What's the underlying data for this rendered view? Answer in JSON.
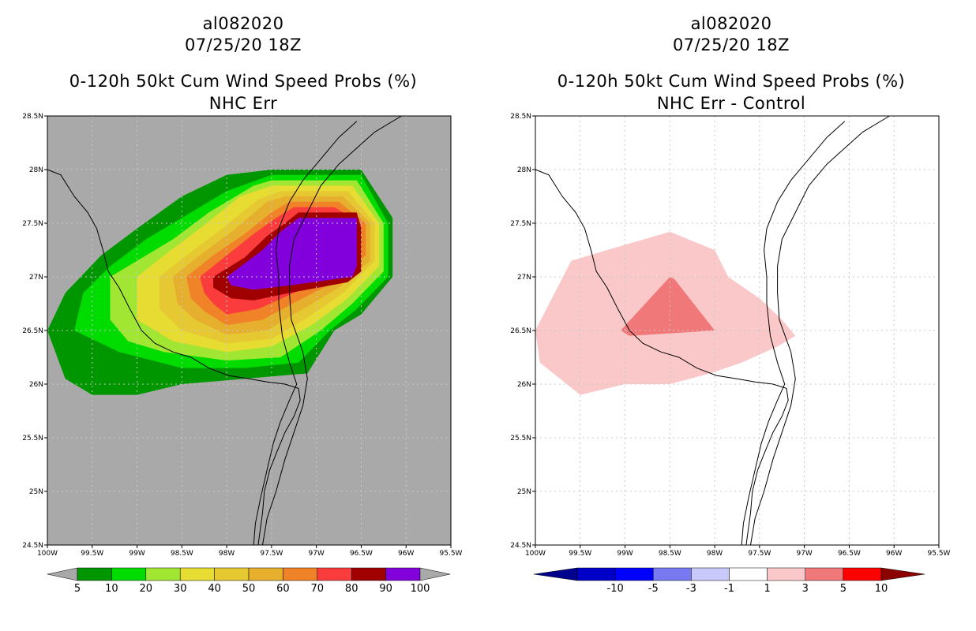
{
  "chart_data": [
    {
      "type": "filled-contour-map",
      "title": [
        "al082020",
        "07/25/20 18Z",
        "0-120h 50kt Cum Wind Speed Probs (%)",
        "NHC Err"
      ],
      "x_ticks": [
        "100W",
        "99.5W",
        "99W",
        "98.5W",
        "98W",
        "97.5W",
        "97W",
        "96.5W",
        "96W",
        "95.5W"
      ],
      "y_ticks": [
        "24.5N",
        "25N",
        "25.5N",
        "26N",
        "26.5N",
        "27N",
        "27.5N",
        "28N",
        "28.5N"
      ],
      "lon_range": [
        -100,
        -95.5
      ],
      "lat_range": [
        24.5,
        28.5
      ],
      "background_color": "#a9a9a9",
      "colorbar": {
        "labels": [
          "5",
          "10",
          "20",
          "30",
          "40",
          "50",
          "60",
          "70",
          "80",
          "90",
          "100"
        ],
        "colors": [
          "#009600",
          "#00dc00",
          "#a0e632",
          "#e6dc32",
          "#e6c832",
          "#e6af2d",
          "#f08228",
          "#fa3c3c",
          "#a00000",
          "#8200dc"
        ]
      },
      "levels": [
        {
          "color": "#009600",
          "outline": [
            [
              -100,
              26.5
            ],
            [
              -99.8,
              26.85
            ],
            [
              -99.4,
              27.2
            ],
            [
              -99,
              27.45
            ],
            [
              -98.5,
              27.75
            ],
            [
              -98,
              27.95
            ],
            [
              -97.5,
              28
            ],
            [
              -96.5,
              28
            ],
            [
              -96.15,
              27.55
            ],
            [
              -96.15,
              27
            ],
            [
              -96.5,
              26.65
            ],
            [
              -96.8,
              26.5
            ],
            [
              -97.1,
              26.1
            ],
            [
              -97.8,
              26.05
            ],
            [
              -98.5,
              26
            ],
            [
              -99,
              25.9
            ],
            [
              -99.5,
              25.9
            ],
            [
              -99.8,
              26.05
            ]
          ]
        },
        {
          "color": "#00dc00",
          "outline": [
            [
              -99.7,
              26.5
            ],
            [
              -99.6,
              26.85
            ],
            [
              -99.3,
              27.1
            ],
            [
              -98.9,
              27.35
            ],
            [
              -98.5,
              27.55
            ],
            [
              -98,
              27.8
            ],
            [
              -97.5,
              27.95
            ],
            [
              -96.5,
              27.95
            ],
            [
              -96.2,
              27.5
            ],
            [
              -96.2,
              27
            ],
            [
              -96.55,
              26.7
            ],
            [
              -96.85,
              26.5
            ],
            [
              -97.2,
              26.2
            ],
            [
              -97.8,
              26.15
            ],
            [
              -98.5,
              26.15
            ],
            [
              -99.2,
              26.3
            ]
          ]
        },
        {
          "color": "#a0e632",
          "outline": [
            [
              -99.3,
              26.6
            ],
            [
              -99.3,
              27
            ],
            [
              -99,
              27.15
            ],
            [
              -98.6,
              27.35
            ],
            [
              -98.2,
              27.6
            ],
            [
              -97.7,
              27.85
            ],
            [
              -97.5,
              27.9
            ],
            [
              -96.55,
              27.9
            ],
            [
              -96.25,
              27.5
            ],
            [
              -96.25,
              27.05
            ],
            [
              -96.6,
              26.75
            ],
            [
              -96.95,
              26.5
            ],
            [
              -97.4,
              26.25
            ],
            [
              -98,
              26.22
            ],
            [
              -98.7,
              26.3
            ],
            [
              -99.1,
              26.4
            ]
          ]
        },
        {
          "color": "#e6dc32",
          "outline": [
            [
              -99,
              26.6
            ],
            [
              -99,
              27
            ],
            [
              -98.7,
              27.2
            ],
            [
              -98.3,
              27.45
            ],
            [
              -97.85,
              27.75
            ],
            [
              -97.5,
              27.85
            ],
            [
              -96.6,
              27.85
            ],
            [
              -96.3,
              27.5
            ],
            [
              -96.3,
              27.1
            ],
            [
              -96.65,
              26.8
            ],
            [
              -97.05,
              26.55
            ],
            [
              -97.5,
              26.35
            ],
            [
              -98,
              26.3
            ],
            [
              -98.6,
              26.4
            ]
          ]
        },
        {
          "color": "#e6c832",
          "outline": [
            [
              -98.75,
              26.7
            ],
            [
              -98.75,
              27
            ],
            [
              -98.45,
              27.2
            ],
            [
              -98.05,
              27.45
            ],
            [
              -97.65,
              27.72
            ],
            [
              -97.4,
              27.8
            ],
            [
              -96.65,
              27.8
            ],
            [
              -96.35,
              27.5
            ],
            [
              -96.35,
              27.15
            ],
            [
              -96.7,
              26.85
            ],
            [
              -97.1,
              26.62
            ],
            [
              -97.5,
              26.42
            ],
            [
              -98,
              26.38
            ],
            [
              -98.5,
              26.5
            ]
          ]
        },
        {
          "color": "#e6af2d",
          "outline": [
            [
              -98.55,
              26.75
            ],
            [
              -98.6,
              27
            ],
            [
              -98.3,
              27.2
            ],
            [
              -97.9,
              27.45
            ],
            [
              -97.55,
              27.7
            ],
            [
              -97.35,
              27.75
            ],
            [
              -96.7,
              27.75
            ],
            [
              -96.4,
              27.5
            ],
            [
              -96.4,
              27.15
            ],
            [
              -96.75,
              26.9
            ],
            [
              -97.15,
              26.7
            ],
            [
              -97.55,
              26.5
            ],
            [
              -98,
              26.46
            ],
            [
              -98.35,
              26.6
            ]
          ]
        },
        {
          "color": "#f08228",
          "outline": [
            [
              -98.4,
              26.8
            ],
            [
              -98.45,
              27
            ],
            [
              -98.15,
              27.2
            ],
            [
              -97.8,
              27.4
            ],
            [
              -97.5,
              27.6
            ],
            [
              -97.3,
              27.7
            ],
            [
              -96.75,
              27.7
            ],
            [
              -96.45,
              27.5
            ],
            [
              -96.45,
              27.2
            ],
            [
              -96.8,
              26.95
            ],
            [
              -97.2,
              26.78
            ],
            [
              -97.6,
              26.6
            ],
            [
              -98,
              26.55
            ],
            [
              -98.25,
              26.68
            ]
          ]
        },
        {
          "color": "#fa3c3c",
          "outline": [
            [
              -98.25,
              26.85
            ],
            [
              -98.3,
              27
            ],
            [
              -98,
              27.2
            ],
            [
              -97.7,
              27.4
            ],
            [
              -97.45,
              27.55
            ],
            [
              -97.25,
              27.65
            ],
            [
              -96.8,
              27.65
            ],
            [
              -96.5,
              27.5
            ],
            [
              -96.5,
              27.2
            ],
            [
              -96.85,
              27
            ],
            [
              -97.25,
              26.85
            ],
            [
              -97.65,
              26.7
            ],
            [
              -98,
              26.65
            ],
            [
              -98.15,
              26.75
            ]
          ]
        },
        {
          "color": "#a00000",
          "outline": [
            [
              -98.15,
              27
            ],
            [
              -97.8,
              27.18
            ],
            [
              -97.55,
              27.38
            ],
            [
              -97.35,
              27.5
            ],
            [
              -97.2,
              27.6
            ],
            [
              -96.55,
              27.6
            ],
            [
              -96.5,
              27.45
            ],
            [
              -96.5,
              27.05
            ],
            [
              -96.65,
              26.95
            ],
            [
              -97.3,
              26.85
            ],
            [
              -97.7,
              26.78
            ],
            [
              -97.95,
              26.8
            ],
            [
              -98.15,
              26.9
            ]
          ]
        },
        {
          "color": "#8200dc",
          "outline": [
            [
              -98,
              27
            ],
            [
              -97.6,
              27.25
            ],
            [
              -97.4,
              27.42
            ],
            [
              -97.2,
              27.55
            ],
            [
              -96.55,
              27.55
            ],
            [
              -96.55,
              27.1
            ],
            [
              -96.6,
              27
            ],
            [
              -97.3,
              26.92
            ],
            [
              -97.7,
              26.88
            ],
            [
              -97.95,
              26.92
            ]
          ]
        }
      ]
    },
    {
      "type": "filled-contour-map",
      "title": [
        "al082020",
        "07/25/20 18Z",
        "0-120h 50kt Cum Wind Speed Probs (%)",
        "NHC Err - Control"
      ],
      "x_ticks": [
        "100W",
        "99.5W",
        "99W",
        "98.5W",
        "98W",
        "97.5W",
        "97W",
        "96.5W",
        "96W",
        "95.5W"
      ],
      "y_ticks": [
        "24.5N",
        "25N",
        "25.5N",
        "26N",
        "26.5N",
        "27N",
        "27.5N",
        "28N",
        "28.5N"
      ],
      "lon_range": [
        -100,
        -95.5
      ],
      "lat_range": [
        24.5,
        28.5
      ],
      "background_color": "#ffffff",
      "grid": true,
      "colorbar": {
        "labels": [
          "-10",
          "-5",
          "-3",
          "-1",
          "1",
          "3",
          "5",
          "10"
        ],
        "colors": [
          "#0000c8",
          "#0000ff",
          "#7878f0",
          "#c8c8fa",
          "#ffffff",
          "#fac8c8",
          "#f07878",
          "#ff0000"
        ],
        "end_colors": [
          "#00008c",
          "#8c0000"
        ]
      },
      "levels": [
        {
          "color": "#fac8c8",
          "outline": [
            [
              -100,
              26.5
            ],
            [
              -99.6,
              27.15
            ],
            [
              -99.2,
              27.25
            ],
            [
              -98.5,
              27.42
            ],
            [
              -98,
              27.25
            ],
            [
              -97.85,
              27
            ],
            [
              -97.5,
              26.8
            ],
            [
              -97.25,
              26.6
            ],
            [
              -97.1,
              26.45
            ],
            [
              -97.3,
              26.35
            ],
            [
              -97.7,
              26.2
            ],
            [
              -98.05,
              26.1
            ],
            [
              -98.5,
              26
            ],
            [
              -99,
              26
            ],
            [
              -99.5,
              25.9
            ],
            [
              -99.95,
              26.2
            ]
          ]
        },
        {
          "color": "#f07878",
          "outline": [
            [
              -99.05,
              26.5
            ],
            [
              -98.5,
              27
            ],
            [
              -98.45,
              26.98
            ],
            [
              -98,
              26.5
            ],
            [
              -98.95,
              26.45
            ]
          ]
        }
      ]
    }
  ]
}
